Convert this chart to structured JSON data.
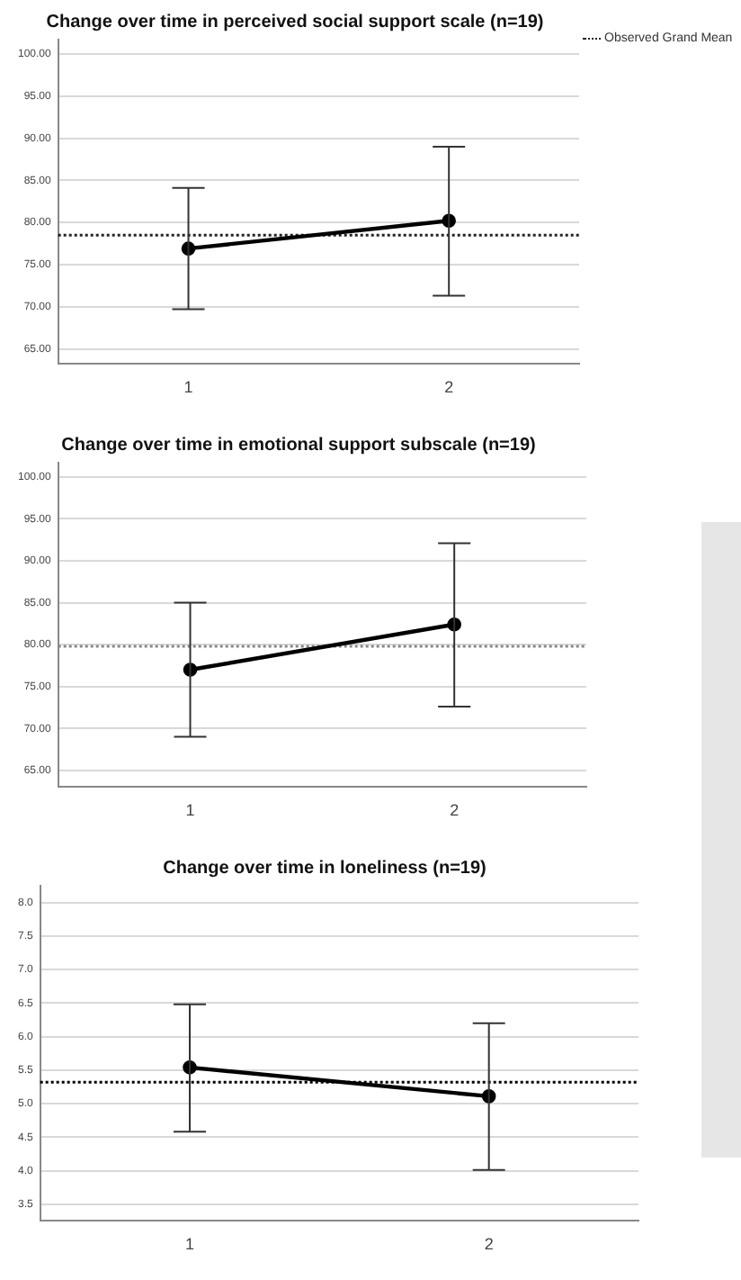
{
  "chart_data": [
    {
      "type": "line",
      "title": "Change over time in perceived social support scale (n=19)",
      "categories": [
        "1",
        "2"
      ],
      "series": [
        {
          "color": "#000000",
          "values": [
            76.9,
            80.2
          ],
          "errors": [
            [
              69.7,
              84.1
            ],
            [
              71.3,
              89.0
            ]
          ]
        }
      ],
      "ylim": [
        63.2,
        101.7
      ],
      "yticks": [
        {
          "value": 65,
          "label": "65.00"
        },
        {
          "value": 70,
          "label": "70.00"
        },
        {
          "value": 75,
          "label": "75.00"
        },
        {
          "value": 80,
          "label": "80.00"
        },
        {
          "value": 85,
          "label": "85.00"
        },
        {
          "value": 90,
          "label": "90.00"
        },
        {
          "value": 95,
          "label": "95.00"
        },
        {
          "value": 100,
          "label": "100.00"
        }
      ],
      "grid": "y",
      "marker": "circle",
      "ref_lines": [
        {
          "axis": "y",
          "value": 78.5,
          "label": "Observed Grand Mean",
          "line_style": "dotted",
          "color": "#222222"
        }
      ]
    },
    {
      "type": "line",
      "title": "Change over time in emotional support subscale (n=19)",
      "categories": [
        "1",
        "2"
      ],
      "series": [
        {
          "color": "#000000",
          "values": [
            77.0,
            82.4
          ],
          "errors": [
            [
              69.0,
              85.0
            ],
            [
              72.6,
              92.1
            ]
          ]
        }
      ],
      "ylim": [
        63.0,
        101.7
      ],
      "yticks": [
        {
          "value": 65,
          "label": "65.00"
        },
        {
          "value": 70,
          "label": "70.00"
        },
        {
          "value": 75,
          "label": "75.00"
        },
        {
          "value": 80,
          "label": "80.00"
        },
        {
          "value": 85,
          "label": "85.00"
        },
        {
          "value": 90,
          "label": "90.00"
        },
        {
          "value": 95,
          "label": "95.00"
        },
        {
          "value": 100,
          "label": "100.00"
        }
      ],
      "grid": "y",
      "marker": "circle",
      "ref_lines": [
        {
          "axis": "y",
          "value": 79.8,
          "line_style": "dotted",
          "color": "#888888"
        }
      ]
    },
    {
      "type": "line",
      "title": "Change over time in loneliness (n=19)",
      "categories": [
        "1",
        "2"
      ],
      "series": [
        {
          "color": "#000000",
          "values": [
            5.54,
            5.11
          ],
          "errors": [
            [
              4.58,
              6.48
            ],
            [
              4.01,
              6.2
            ]
          ]
        }
      ],
      "ylim": [
        3.25,
        8.25
      ],
      "yticks": [
        {
          "value": 3.5,
          "label": "3.5"
        },
        {
          "value": 4,
          "label": "4.0"
        },
        {
          "value": 4.5,
          "label": "4.5"
        },
        {
          "value": 5,
          "label": "5.0"
        },
        {
          "value": 5.5,
          "label": "5.5"
        },
        {
          "value": 6,
          "label": "6.0"
        },
        {
          "value": 6.5,
          "label": "6.5"
        },
        {
          "value": 7,
          "label": "7.0"
        },
        {
          "value": 7.5,
          "label": "7.5"
        },
        {
          "value": 8,
          "label": "8.0"
        }
      ],
      "grid": "y",
      "marker": "circle",
      "ref_lines": [
        {
          "axis": "y",
          "value": 5.32,
          "line_style": "dotted",
          "color": "#000000"
        }
      ]
    }
  ]
}
